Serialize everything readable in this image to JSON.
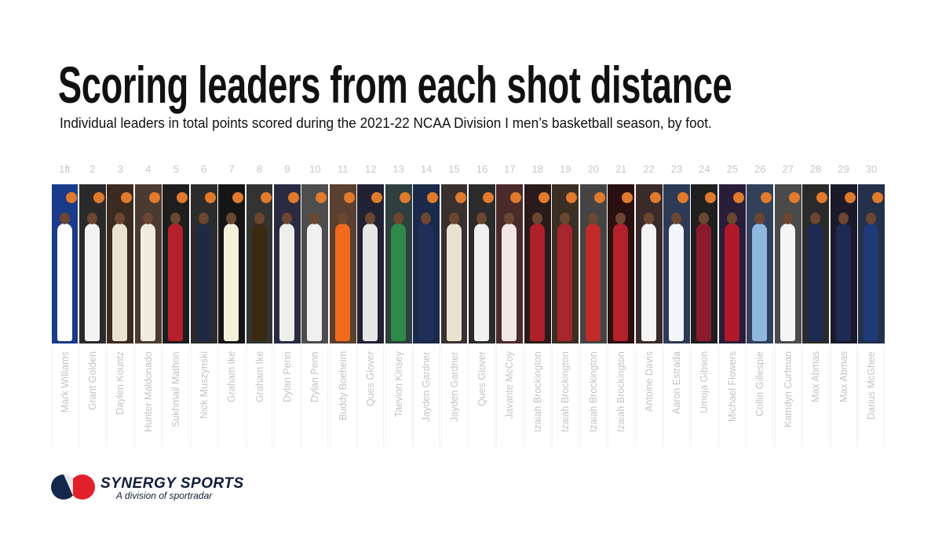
{
  "title": "Scoring leaders from each shot distance",
  "subtitle": "Individual leaders in total points scored during the 2021-22 NCAA Division I men’s basketball season, by foot.",
  "columns": [
    {
      "distance": "1ft",
      "player": "Mark Williams"
    },
    {
      "distance": 2,
      "player": "Grant Golden"
    },
    {
      "distance": 3,
      "player": "Daylen Kountz"
    },
    {
      "distance": 4,
      "player": "Hunter Maldonado"
    },
    {
      "distance": 5,
      "player": "Sukhmail Mathon"
    },
    {
      "distance": 6,
      "player": "Nick Muszynski"
    },
    {
      "distance": 7,
      "player": "Graham Ike"
    },
    {
      "distance": 8,
      "player": "Graham Ike"
    },
    {
      "distance": 9,
      "player": "Dylan Penn"
    },
    {
      "distance": 10,
      "player": "Dylan Penn"
    },
    {
      "distance": 11,
      "player": "Buddy Boeheim"
    },
    {
      "distance": 12,
      "player": "Ques Glover"
    },
    {
      "distance": 13,
      "player": "Taevion Kinsey"
    },
    {
      "distance": 14,
      "player": "Jayden Gardner"
    },
    {
      "distance": 15,
      "player": "Jayden Gardner"
    },
    {
      "distance": 16,
      "player": "Ques Glover"
    },
    {
      "distance": 17,
      "player": "Javante McCoy"
    },
    {
      "distance": 18,
      "player": "Izaiah Brockington"
    },
    {
      "distance": 19,
      "player": "Izaiah Brockington"
    },
    {
      "distance": 20,
      "player": "Izaiah Brockington"
    },
    {
      "distance": 21,
      "player": "Izaiah Brockington"
    },
    {
      "distance": 22,
      "player": "Antoine Davis"
    },
    {
      "distance": 23,
      "player": "Aaron Estrada"
    },
    {
      "distance": 24,
      "player": "Umoja Gibson"
    },
    {
      "distance": 25,
      "player": "Michael Flowers"
    },
    {
      "distance": 26,
      "player": "Collin Gillespie"
    },
    {
      "distance": 27,
      "player": "Kamdyn Curfman"
    },
    {
      "distance": 28,
      "player": "Max Abmas"
    },
    {
      "distance": 29,
      "player": "Max Abmas"
    },
    {
      "distance": 30,
      "player": "Darius McGhee"
    }
  ],
  "logo": {
    "name": "SYNERGY SPORTS",
    "tagline": "A division of sportradar"
  }
}
